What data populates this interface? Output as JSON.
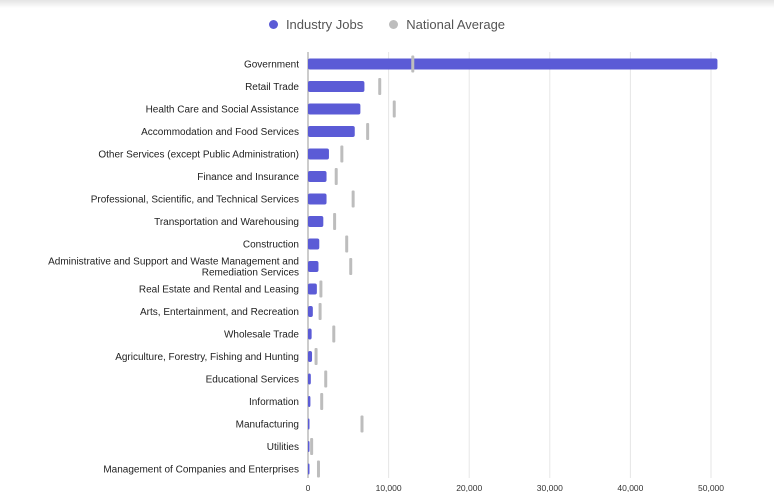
{
  "chart_data": {
    "type": "bar",
    "orientation": "horizontal",
    "title": "",
    "xlabel": "",
    "ylabel": "",
    "xlim": [
      0,
      50000
    ],
    "x_ticks": [
      0,
      10000,
      20000,
      30000,
      40000,
      50000
    ],
    "x_tick_labels": [
      "0",
      "10,000",
      "20,000",
      "30,000",
      "40,000",
      "50,000"
    ],
    "grid": "vertical",
    "legend_position": "top-center",
    "categories": [
      [
        "Government"
      ],
      [
        "Retail Trade"
      ],
      [
        "Health Care and Social Assistance"
      ],
      [
        "Accommodation and Food Services"
      ],
      [
        "Other Services (except Public Administration)"
      ],
      [
        "Finance and Insurance"
      ],
      [
        "Professional, Scientific, and Technical Services"
      ],
      [
        "Transportation and Warehousing"
      ],
      [
        "Construction"
      ],
      [
        "Administrative and Support and Waste Management and",
        "Remediation Services"
      ],
      [
        "Real Estate and Rental and Leasing"
      ],
      [
        "Arts, Entertainment, and Recreation"
      ],
      [
        "Wholesale Trade"
      ],
      [
        "Agriculture, Forestry, Fishing and Hunting"
      ],
      [
        "Educational Services"
      ],
      [
        "Information"
      ],
      [
        "Manufacturing"
      ],
      [
        "Utilities"
      ],
      [
        "Management of Companies and Enterprises"
      ]
    ],
    "series": [
      {
        "name": "Industry Jobs",
        "color": "#5b5bd6",
        "mark": "bar",
        "values": [
          50800,
          7000,
          6500,
          5800,
          2600,
          2300,
          2300,
          1900,
          1400,
          1300,
          1100,
          600,
          450,
          500,
          350,
          300,
          150,
          80,
          50
        ]
      },
      {
        "name": "National Average",
        "color": "#bdbdbd",
        "mark": "tick",
        "values": [
          13000,
          8900,
          10700,
          7400,
          4200,
          3500,
          5600,
          3300,
          4800,
          5300,
          1600,
          1500,
          3200,
          1000,
          2200,
          1700,
          6700,
          450,
          1300
        ]
      }
    ]
  }
}
